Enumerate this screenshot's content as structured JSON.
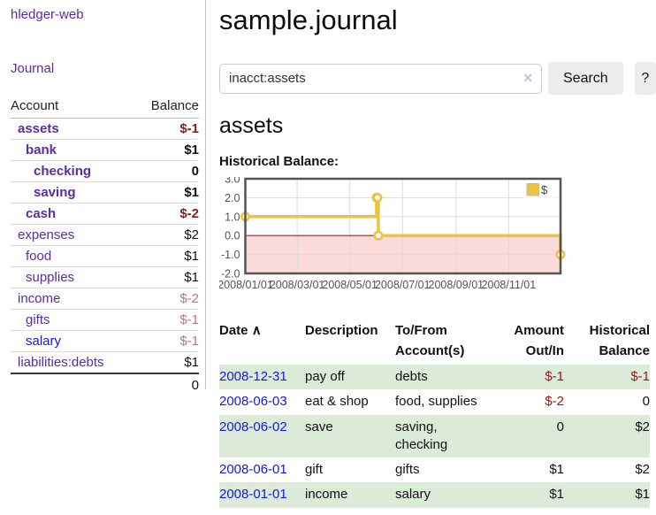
{
  "colors": {
    "accent_purple": "#5a2ca0",
    "link_blue": "#1618e0",
    "negative_strong": "#8b1a1a",
    "negative_soft": "#b97878",
    "register_row_green": "#dcebd8",
    "chart_line": "#edc240",
    "chart_negative_fill": "#fbdada",
    "chart_zero_line": "#8f2d2b"
  },
  "sidebar": {
    "app_title": "hledger-web",
    "journal_link": "Journal",
    "headers": {
      "account": "Account",
      "balance": "Balance"
    },
    "accounts": [
      {
        "name": "assets",
        "level": 1,
        "bold": true,
        "balance": "$-1"
      },
      {
        "name": "bank",
        "level": 2,
        "bold": true,
        "balance": "$1"
      },
      {
        "name": "checking",
        "level": 3,
        "bold": true,
        "balance": "0"
      },
      {
        "name": "saving",
        "level": 3,
        "bold": true,
        "balance": "$1"
      },
      {
        "name": "cash",
        "level": 2,
        "bold": true,
        "balance": "$-2"
      },
      {
        "name": "expenses",
        "level": 1,
        "bold": false,
        "balance": "$2"
      },
      {
        "name": "food",
        "level": 2,
        "bold": false,
        "balance": "$1"
      },
      {
        "name": "supplies",
        "level": 2,
        "bold": false,
        "balance": "$1"
      },
      {
        "name": "income",
        "level": 1,
        "bold": false,
        "balance": "$-2"
      },
      {
        "name": "gifts",
        "level": 2,
        "bold": false,
        "balance": "$-1"
      },
      {
        "name": "salary",
        "level": 2,
        "bold": false,
        "balance": "$-1",
        "blue": true
      },
      {
        "name": "liabilities:debts",
        "level": 1,
        "bold": false,
        "balance": "$1"
      }
    ],
    "total": "0"
  },
  "main": {
    "title": "sample.journal",
    "search": {
      "value": "inacct:assets",
      "clear_icon": "✕",
      "button_label": "Search",
      "help_label": "?"
    },
    "account_heading": "assets",
    "chart_section_label": "Historical Balance:"
  },
  "chart_data": {
    "type": "line",
    "title": "Historical Balance",
    "style": "step",
    "series": [
      {
        "name": "$",
        "points": [
          {
            "date": "2008-01-01",
            "value": 1
          },
          {
            "date": "2008-06-01",
            "value": 2
          },
          {
            "date": "2008-06-02",
            "value": 2
          },
          {
            "date": "2008-06-03",
            "value": 0
          },
          {
            "date": "2008-12-31",
            "value": -1
          }
        ]
      }
    ],
    "x_range": [
      "2008-01-01",
      "2008-12-31"
    ],
    "ylim": [
      -2,
      3
    ],
    "y_ticks": [
      3,
      2,
      1,
      0,
      -1,
      -2
    ],
    "x_ticks": [
      "2008/01/01",
      "2008/03/01",
      "2008/05/01",
      "2008/07/01",
      "2008/09/01",
      "2008/11/01"
    ],
    "grid": true,
    "legend_position": "top-right",
    "negative_region_shaded": true
  },
  "register": {
    "headers": {
      "date": "Date",
      "sort_indicator": "∧",
      "description": "Description",
      "accounts": "To/From\nAccount(s)",
      "amount": "Amount\nOut/In",
      "balance": "Historical\nBalance"
    },
    "rows": [
      {
        "date": "2008-12-31",
        "description": "pay off",
        "accounts": "debts",
        "amount": "$-1",
        "balance": "$-1"
      },
      {
        "date": "2008-06-03",
        "description": "eat & shop",
        "accounts": "food, supplies",
        "amount": "$-2",
        "balance": "0"
      },
      {
        "date": "2008-06-02",
        "description": "save",
        "accounts": "saving, checking",
        "amount": "0",
        "balance": "$2"
      },
      {
        "date": "2008-06-01",
        "description": "gift",
        "accounts": "gifts",
        "amount": "$1",
        "balance": "$2"
      },
      {
        "date": "2008-01-01",
        "description": "income",
        "accounts": "salary",
        "amount": "$1",
        "balance": "$1"
      }
    ]
  }
}
